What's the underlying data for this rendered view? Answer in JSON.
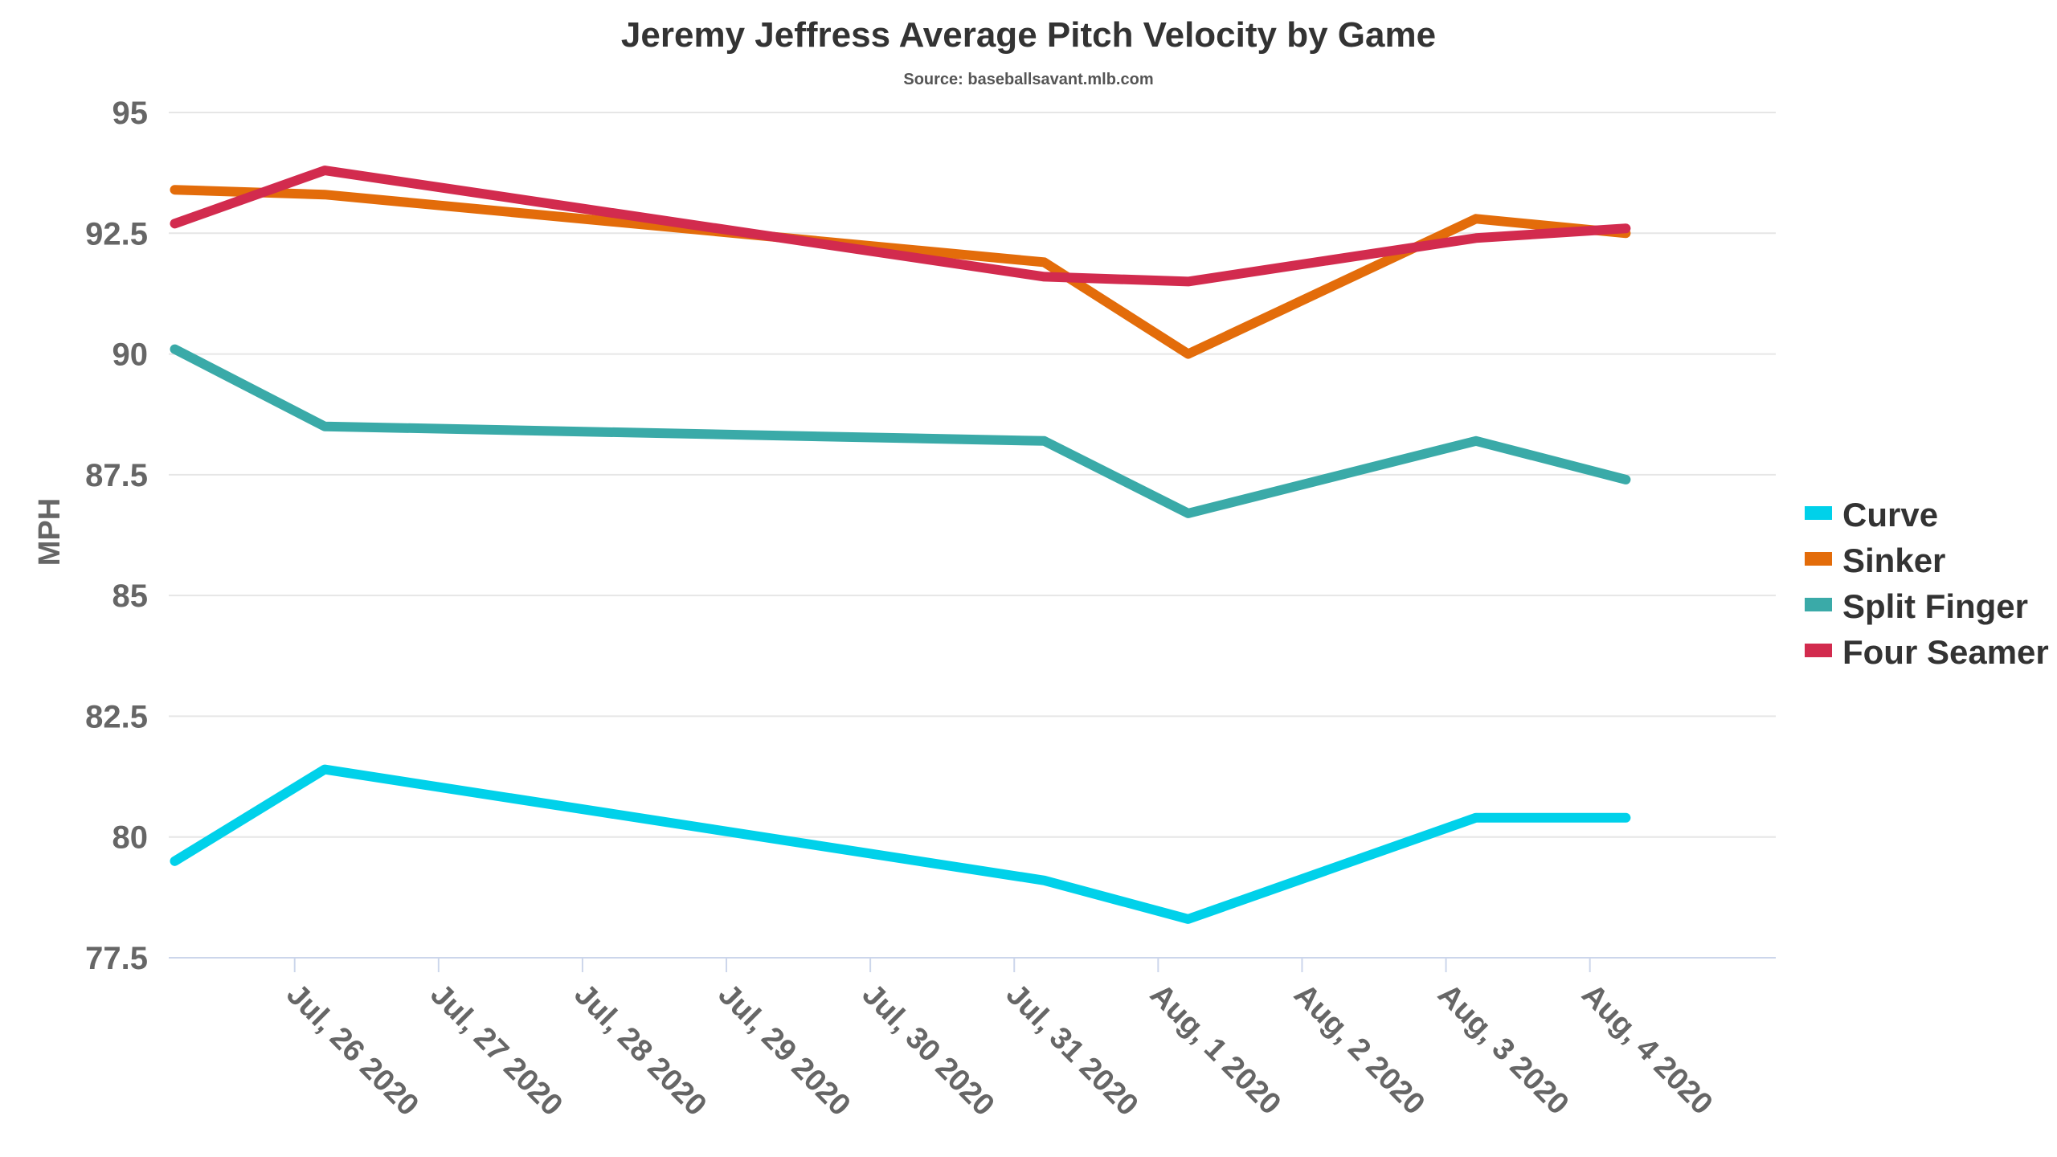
{
  "chart_data": {
    "type": "line",
    "title": "Jeremy Jeffress Average Pitch Velocity by Game",
    "subtitle": "Source: baseballsavant.mlb.com",
    "ylabel": "MPH",
    "xlabel": "",
    "ylim": [
      77.5,
      95
    ],
    "yticks": [
      77.5,
      80,
      82.5,
      85,
      87.5,
      90,
      92.5,
      95
    ],
    "ytick_labels": [
      "77.5",
      "80",
      "82.5",
      "85",
      "87.5",
      "90",
      "92.5",
      "95"
    ],
    "xlim": [
      "2020-07-25T03:00",
      "2020-08-05T07:00"
    ],
    "xticks": [
      "2020-07-26",
      "2020-07-27",
      "2020-07-28",
      "2020-07-29",
      "2020-07-30",
      "2020-07-31",
      "2020-08-01",
      "2020-08-02",
      "2020-08-03",
      "2020-08-04"
    ],
    "xtick_labels": [
      "Jul, 26 2020",
      "Jul, 27 2020",
      "Jul, 28 2020",
      "Jul, 29 2020",
      "Jul, 30 2020",
      "Jul, 31 2020",
      "Aug, 1 2020",
      "Aug, 2 2020",
      "Aug, 3 2020",
      "Aug, 4 2020"
    ],
    "grid": true,
    "legend_position": "right",
    "series": [
      {
        "name": "Curve",
        "color": "#00d1ea",
        "x": [
          "2020-07-25T04:00",
          "2020-07-26T05:00",
          "2020-07-31T05:00",
          "2020-08-01T05:00",
          "2020-08-03T05:00",
          "2020-08-04T06:00"
        ],
        "y": [
          79.5,
          81.4,
          79.1,
          78.3,
          80.4,
          80.4
        ]
      },
      {
        "name": "Sinker",
        "color": "#e36c0a",
        "x": [
          "2020-07-25T04:00",
          "2020-07-26T05:00",
          "2020-07-31T05:00",
          "2020-08-01T05:00",
          "2020-08-03T05:00",
          "2020-08-04T06:00"
        ],
        "y": [
          93.4,
          93.3,
          91.9,
          90.0,
          92.8,
          92.5
        ]
      },
      {
        "name": "Split Finger",
        "color": "#3aaaa8",
        "x": [
          "2020-07-25T04:00",
          "2020-07-26T05:00",
          "2020-07-31T05:00",
          "2020-08-01T05:00",
          "2020-08-03T05:00",
          "2020-08-04T06:00"
        ],
        "y": [
          90.1,
          88.5,
          88.2,
          86.7,
          88.2,
          87.4
        ]
      },
      {
        "name": "Four Seamer",
        "color": "#d22b4e",
        "x": [
          "2020-07-25T04:00",
          "2020-07-26T05:00",
          "2020-07-31T05:00",
          "2020-08-01T05:00",
          "2020-08-03T05:00",
          "2020-08-04T06:00"
        ],
        "y": [
          92.7,
          93.8,
          91.6,
          91.5,
          92.4,
          92.6
        ]
      }
    ]
  }
}
